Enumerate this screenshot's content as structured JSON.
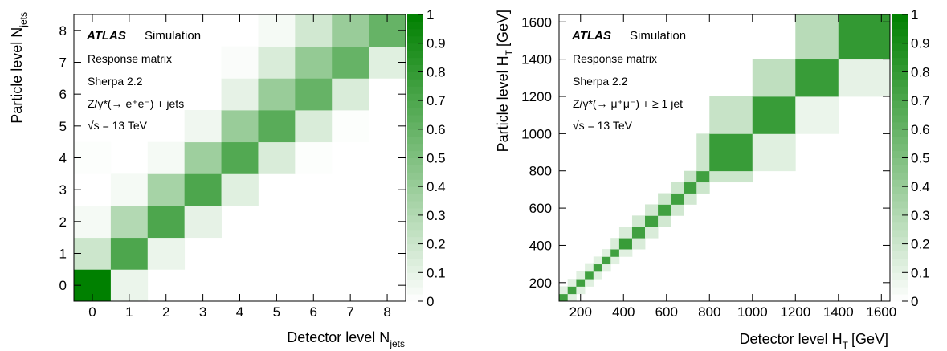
{
  "colors": {
    "low": "#ffffff",
    "high": "#008000",
    "frame": "#000000"
  },
  "chart_data": [
    {
      "type": "heatmap",
      "xlabel": "Detector level N",
      "xlabel_sub": "jets",
      "ylabel": "Particle level N",
      "ylabel_sub": "jets",
      "x_edges": [
        -0.5,
        0.5,
        1.5,
        2.5,
        3.5,
        4.5,
        5.5,
        6.5,
        7.5,
        8.5
      ],
      "y_edges": [
        -0.5,
        0.5,
        1.5,
        2.5,
        3.5,
        4.5,
        5.5,
        6.5,
        7.5,
        8.5
      ],
      "xlim": [
        -0.5,
        8.5
      ],
      "ylim": [
        -0.5,
        8.5
      ],
      "x_ticks": [
        0,
        1,
        2,
        3,
        4,
        5,
        6,
        7,
        8
      ],
      "y_ticks": [
        0,
        1,
        2,
        3,
        4,
        5,
        6,
        7,
        8
      ],
      "x_tick_labels": [
        "0",
        "1",
        "2",
        "3",
        "4",
        "5",
        "6",
        "7",
        "8"
      ],
      "y_tick_labels": [
        "0",
        "1",
        "2",
        "3",
        "4",
        "5",
        "6",
        "7",
        "8"
      ],
      "z_range": [
        0,
        1
      ],
      "colorbar_ticks": [
        0,
        0.1,
        0.2,
        0.3,
        0.4,
        0.5,
        0.6,
        0.7,
        0.8,
        0.9,
        1
      ],
      "colorbar_tick_labels": [
        "0",
        "0.1",
        "0.2",
        "0.3",
        "0.4",
        "0.5",
        "0.6",
        "0.7",
        "0.8",
        "0.9",
        "1"
      ],
      "values": [
        [
          1.0,
          0.08,
          0.0,
          0.0,
          0.0,
          0.0,
          0.0,
          0.0,
          0.0
        ],
        [
          0.2,
          0.7,
          0.08,
          0.0,
          0.0,
          0.0,
          0.0,
          0.0,
          0.0
        ],
        [
          0.04,
          0.3,
          0.7,
          0.1,
          0.0,
          0.0,
          0.0,
          0.0,
          0.0
        ],
        [
          0.0,
          0.04,
          0.35,
          0.7,
          0.12,
          0.0,
          0.0,
          0.0,
          0.0
        ],
        [
          0.01,
          0.0,
          0.04,
          0.38,
          0.68,
          0.15,
          0.01,
          0.0,
          0.0
        ],
        [
          0.0,
          0.0,
          0.0,
          0.06,
          0.4,
          0.65,
          0.15,
          0.01,
          0.0
        ],
        [
          0.0,
          0.0,
          0.0,
          0.0,
          0.1,
          0.4,
          0.6,
          0.15,
          0.0
        ],
        [
          0.0,
          0.0,
          0.0,
          0.0,
          0.02,
          0.15,
          0.42,
          0.6,
          0.12
        ],
        [
          0.0,
          0.0,
          0.0,
          0.0,
          0.0,
          0.04,
          0.18,
          0.4,
          0.6
        ]
      ],
      "legend": [
        {
          "label": "ATLAS",
          "label2": "Simulation"
        },
        {
          "label": "Response matrix"
        },
        {
          "label": "Sherpa 2.2"
        },
        {
          "label": "Z/γ*(→ e⁺e⁻) + jets"
        },
        {
          "label": "√s = 13 TeV"
        }
      ]
    },
    {
      "type": "heatmap",
      "xlabel": "Detector level H",
      "xlabel_sub": "T",
      "xlabel_unit": "[GeV]",
      "ylabel": "Particle level H",
      "ylabel_sub": "T",
      "ylabel_unit": "[GeV]",
      "x_edges": [
        100,
        140,
        180,
        220,
        260,
        300,
        340,
        380,
        440,
        500,
        560,
        620,
        680,
        740,
        800,
        1000,
        1200,
        1400,
        1640
      ],
      "y_edges": [
        100,
        140,
        180,
        220,
        260,
        300,
        340,
        380,
        440,
        500,
        560,
        620,
        680,
        740,
        800,
        1000,
        1200,
        1400,
        1640
      ],
      "xlim": [
        100,
        1640
      ],
      "ylim": [
        100,
        1640
      ],
      "x_ticks": [
        200,
        400,
        600,
        800,
        1000,
        1200,
        1400,
        1600
      ],
      "y_ticks": [
        200,
        400,
        600,
        800,
        1000,
        1200,
        1400,
        1600
      ],
      "x_tick_labels": [
        "200",
        "400",
        "600",
        "800",
        "1000",
        "1200",
        "1400",
        "1600"
      ],
      "y_tick_labels": [
        "200",
        "400",
        "600",
        "800",
        "1000",
        "1200",
        "1400",
        "1600"
      ],
      "z_range": [
        0,
        1
      ],
      "colorbar_ticks": [
        0,
        0.1,
        0.2,
        0.3,
        0.4,
        0.5,
        0.6,
        0.7,
        0.8,
        0.9,
        1
      ],
      "colorbar_tick_labels": [
        "0",
        "0.1",
        "0.2",
        "0.3",
        "0.4",
        "0.5",
        "0.6",
        "0.7",
        "0.8",
        "0.9",
        "1"
      ],
      "values": [
        [
          0.75,
          0.12,
          0.0,
          0.0,
          0.0,
          0.0,
          0.0,
          0.0,
          0.0,
          0.0,
          0.0,
          0.0,
          0.0,
          0.0,
          0.0,
          0.0,
          0.0,
          0.0
        ],
        [
          0.12,
          0.75,
          0.12,
          0.0,
          0.0,
          0.0,
          0.0,
          0.0,
          0.0,
          0.0,
          0.0,
          0.0,
          0.0,
          0.0,
          0.0,
          0.0,
          0.0,
          0.0
        ],
        [
          0.0,
          0.12,
          0.75,
          0.12,
          0.0,
          0.0,
          0.0,
          0.0,
          0.0,
          0.0,
          0.0,
          0.0,
          0.0,
          0.0,
          0.0,
          0.0,
          0.0,
          0.0
        ],
        [
          0.0,
          0.0,
          0.12,
          0.75,
          0.12,
          0.0,
          0.0,
          0.0,
          0.0,
          0.0,
          0.0,
          0.0,
          0.0,
          0.0,
          0.0,
          0.0,
          0.0,
          0.0
        ],
        [
          0.0,
          0.0,
          0.0,
          0.12,
          0.75,
          0.12,
          0.0,
          0.0,
          0.0,
          0.0,
          0.0,
          0.0,
          0.0,
          0.0,
          0.0,
          0.0,
          0.0,
          0.0
        ],
        [
          0.0,
          0.0,
          0.0,
          0.0,
          0.12,
          0.75,
          0.12,
          0.0,
          0.0,
          0.0,
          0.0,
          0.0,
          0.0,
          0.0,
          0.0,
          0.0,
          0.0,
          0.0
        ],
        [
          0.0,
          0.0,
          0.0,
          0.0,
          0.0,
          0.12,
          0.75,
          0.12,
          0.0,
          0.0,
          0.0,
          0.0,
          0.0,
          0.0,
          0.0,
          0.0,
          0.0,
          0.0
        ],
        [
          0.0,
          0.0,
          0.0,
          0.0,
          0.0,
          0.0,
          0.15,
          0.78,
          0.15,
          0.0,
          0.0,
          0.0,
          0.0,
          0.0,
          0.0,
          0.0,
          0.0,
          0.0
        ],
        [
          0.0,
          0.0,
          0.0,
          0.0,
          0.0,
          0.0,
          0.0,
          0.15,
          0.75,
          0.15,
          0.0,
          0.0,
          0.0,
          0.0,
          0.0,
          0.0,
          0.0,
          0.0
        ],
        [
          0.0,
          0.0,
          0.0,
          0.0,
          0.0,
          0.0,
          0.0,
          0.0,
          0.18,
          0.75,
          0.18,
          0.0,
          0.0,
          0.0,
          0.0,
          0.0,
          0.0,
          0.0
        ],
        [
          0.0,
          0.0,
          0.0,
          0.0,
          0.0,
          0.0,
          0.0,
          0.0,
          0.0,
          0.18,
          0.75,
          0.18,
          0.0,
          0.0,
          0.0,
          0.0,
          0.0,
          0.0
        ],
        [
          0.0,
          0.0,
          0.0,
          0.0,
          0.0,
          0.0,
          0.0,
          0.0,
          0.0,
          0.0,
          0.2,
          0.75,
          0.18,
          0.0,
          0.0,
          0.0,
          0.0,
          0.0
        ],
        [
          0.0,
          0.0,
          0.0,
          0.0,
          0.0,
          0.0,
          0.0,
          0.0,
          0.0,
          0.0,
          0.0,
          0.2,
          0.75,
          0.2,
          0.0,
          0.0,
          0.0,
          0.0
        ],
        [
          0.0,
          0.0,
          0.0,
          0.0,
          0.0,
          0.0,
          0.0,
          0.0,
          0.0,
          0.0,
          0.0,
          0.0,
          0.22,
          0.75,
          0.2,
          0.0,
          0.0,
          0.0
        ],
        [
          0.0,
          0.0,
          0.0,
          0.0,
          0.0,
          0.0,
          0.0,
          0.0,
          0.0,
          0.0,
          0.0,
          0.0,
          0.0,
          0.2,
          0.78,
          0.12,
          0.0,
          0.0
        ],
        [
          0.0,
          0.0,
          0.0,
          0.0,
          0.0,
          0.0,
          0.0,
          0.0,
          0.0,
          0.0,
          0.0,
          0.0,
          0.0,
          0.0,
          0.22,
          0.78,
          0.08,
          0.0
        ],
        [
          0.0,
          0.0,
          0.0,
          0.0,
          0.0,
          0.0,
          0.0,
          0.0,
          0.0,
          0.0,
          0.0,
          0.0,
          0.0,
          0.0,
          0.0,
          0.25,
          0.78,
          0.1
        ],
        [
          0.0,
          0.0,
          0.0,
          0.0,
          0.0,
          0.0,
          0.0,
          0.0,
          0.0,
          0.0,
          0.0,
          0.0,
          0.0,
          0.0,
          0.0,
          0.0,
          0.28,
          0.8
        ]
      ],
      "legend": [
        {
          "label": "ATLAS",
          "label2": "Simulation"
        },
        {
          "label": "Response matrix"
        },
        {
          "label": "Sherpa 2.2"
        },
        {
          "label": "Z/γ*(→ μ⁺μ⁻) + ≥ 1 jet"
        },
        {
          "label": "√s = 13 TeV"
        }
      ]
    }
  ]
}
